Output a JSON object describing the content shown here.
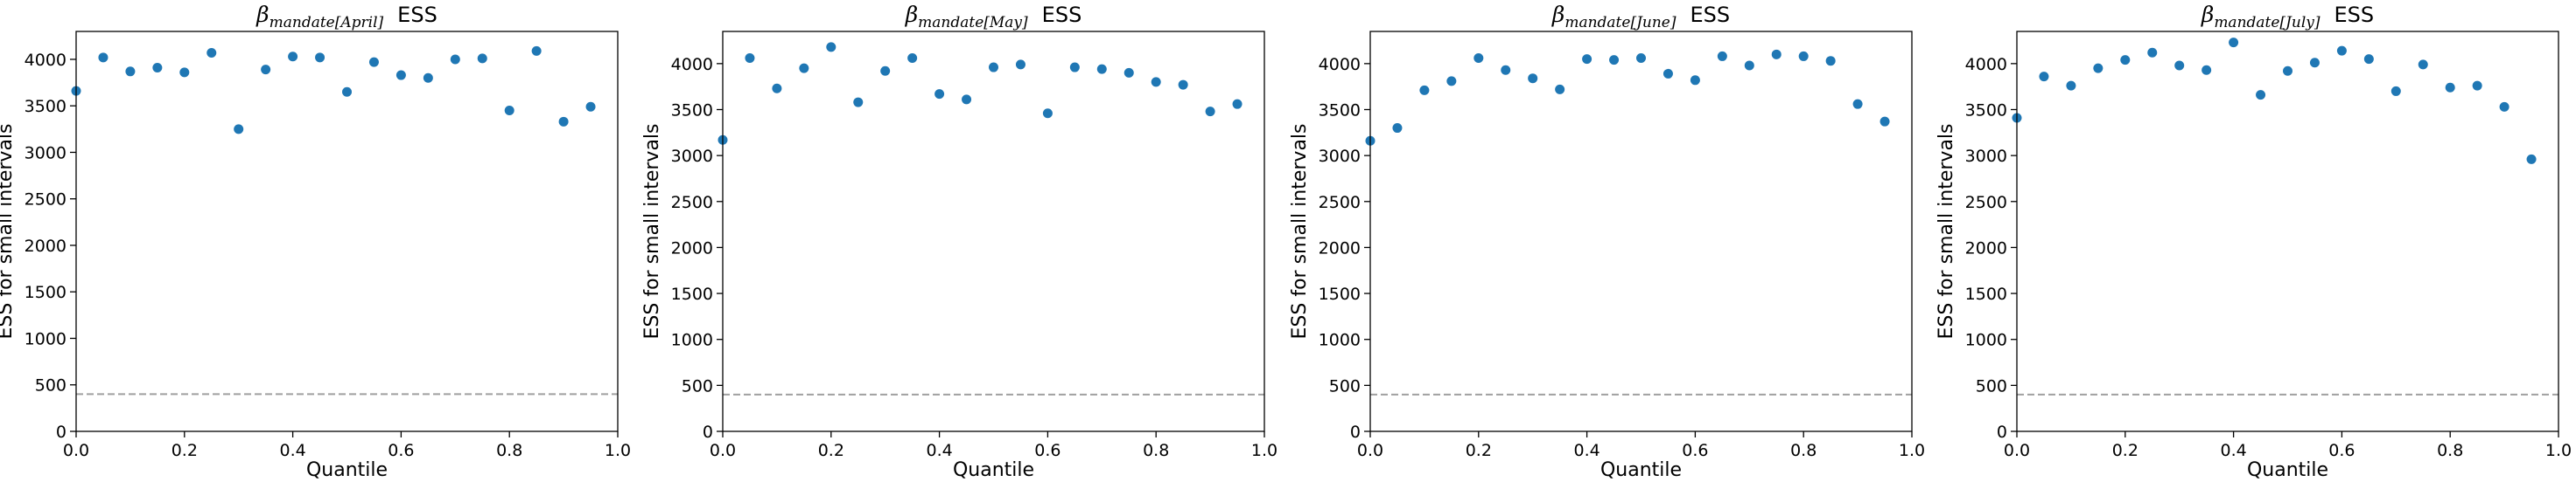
{
  "chart_data": [
    {
      "type": "scatter",
      "title": {
        "symbol": "β",
        "subscript": "mandate[April]",
        "suffix": "ESS"
      },
      "xlabel": "Quantile",
      "ylabel": "ESS for small intervals",
      "xlim": [
        0.0,
        1.0
      ],
      "ylim": [
        0,
        4300
      ],
      "xticks": [
        "0.0",
        "0.2",
        "0.4",
        "0.6",
        "0.8",
        "1.0"
      ],
      "yticks": [
        "0",
        "500",
        "1000",
        "1500",
        "2000",
        "2500",
        "3000",
        "3500",
        "4000"
      ],
      "reference_line": 400,
      "x": [
        0.0,
        0.05,
        0.1,
        0.15,
        0.2,
        0.25,
        0.3,
        0.35,
        0.4,
        0.45,
        0.5,
        0.55,
        0.6,
        0.65,
        0.7,
        0.75,
        0.8,
        0.85,
        0.9,
        0.95
      ],
      "y": [
        3660,
        4020,
        3870,
        3910,
        3860,
        4070,
        3250,
        3890,
        4030,
        4020,
        3650,
        3970,
        3830,
        3800,
        4000,
        4010,
        3450,
        4090,
        3330,
        3490
      ]
    },
    {
      "type": "scatter",
      "title": {
        "symbol": "β",
        "subscript": "mandate[May]",
        "suffix": "ESS"
      },
      "xlabel": "Quantile",
      "ylabel": "ESS for small intervals",
      "xlim": [
        0.0,
        1.0
      ],
      "ylim": [
        0,
        4350
      ],
      "xticks": [
        "0.0",
        "0.2",
        "0.4",
        "0.6",
        "0.8",
        "1.0"
      ],
      "yticks": [
        "0",
        "500",
        "1000",
        "1500",
        "2000",
        "2500",
        "3000",
        "3500",
        "4000"
      ],
      "reference_line": 400,
      "x": [
        0.0,
        0.05,
        0.1,
        0.15,
        0.2,
        0.25,
        0.3,
        0.35,
        0.4,
        0.45,
        0.5,
        0.55,
        0.6,
        0.65,
        0.7,
        0.75,
        0.8,
        0.85,
        0.9,
        0.95
      ],
      "y": [
        3170,
        4060,
        3730,
        3950,
        4180,
        3580,
        3920,
        4060,
        3670,
        3610,
        3960,
        3990,
        3460,
        3960,
        3940,
        3900,
        3800,
        3770,
        3480,
        3560
      ]
    },
    {
      "type": "scatter",
      "title": {
        "symbol": "β",
        "subscript": "mandate[June]",
        "suffix": "ESS"
      },
      "xlabel": "Quantile",
      "ylabel": "ESS for small intervals",
      "xlim": [
        0.0,
        1.0
      ],
      "ylim": [
        0,
        4350
      ],
      "xticks": [
        "0.0",
        "0.2",
        "0.4",
        "0.6",
        "0.8",
        "1.0"
      ],
      "yticks": [
        "0",
        "500",
        "1000",
        "1500",
        "2000",
        "2500",
        "3000",
        "3500",
        "4000"
      ],
      "reference_line": 400,
      "x": [
        0.0,
        0.05,
        0.1,
        0.15,
        0.2,
        0.25,
        0.3,
        0.35,
        0.4,
        0.45,
        0.5,
        0.55,
        0.6,
        0.65,
        0.7,
        0.75,
        0.8,
        0.85,
        0.9,
        0.95
      ],
      "y": [
        3160,
        3300,
        3710,
        3810,
        4060,
        3930,
        3840,
        3720,
        4050,
        4040,
        4060,
        3890,
        3820,
        4080,
        3980,
        4100,
        4080,
        4030,
        3560,
        3370
      ]
    },
    {
      "type": "scatter",
      "title": {
        "symbol": "β",
        "subscript": "mandate[July]",
        "suffix": "ESS"
      },
      "xlabel": "Quantile",
      "ylabel": "ESS for small intervals",
      "xlim": [
        0.0,
        1.0
      ],
      "ylim": [
        0,
        4350
      ],
      "xticks": [
        "0.0",
        "0.2",
        "0.4",
        "0.6",
        "0.8",
        "1.0"
      ],
      "yticks": [
        "0",
        "500",
        "1000",
        "1500",
        "2000",
        "2500",
        "3000",
        "3500",
        "4000"
      ],
      "reference_line": 400,
      "x": [
        0.0,
        0.05,
        0.1,
        0.15,
        0.2,
        0.25,
        0.3,
        0.35,
        0.4,
        0.45,
        0.5,
        0.55,
        0.6,
        0.65,
        0.7,
        0.75,
        0.8,
        0.85,
        0.9,
        0.95
      ],
      "y": [
        3410,
        3860,
        3760,
        3950,
        4040,
        4120,
        3980,
        3930,
        4230,
        3660,
        3920,
        4010,
        4140,
        4050,
        3700,
        3990,
        3740,
        3760,
        3530,
        2960
      ]
    }
  ],
  "colors": {
    "marker": "#1f77b4",
    "reference_line": "#a0a0a0",
    "axes": "#000000"
  }
}
